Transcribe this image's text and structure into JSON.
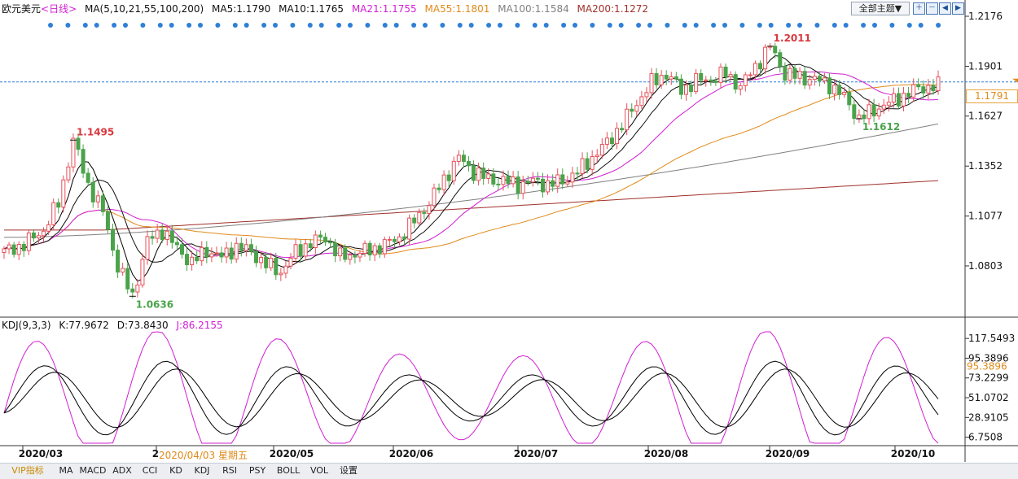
{
  "legend": {
    "symbol": "欧元美元",
    "period": "<日线>",
    "ma_params": "MA(5,10,21,55,100,200)",
    "ma5": "MA5:1.1790",
    "ma10": "MA10:1.1765",
    "ma21": "MA21:1.1755",
    "ma55": "MA55:1.1801",
    "ma100": "MA100:1.1584",
    "ma200": "MA200:1.1272"
  },
  "kdj_legend": {
    "params": "KDJ(9,3,3)",
    "k": "K:77.9672",
    "d": "D:73.8430",
    "j": "J:86.2155"
  },
  "toolbar": {
    "theme_label": "全部主题▼"
  },
  "tabs": [
    "VIP指标",
    "MA",
    "MACD",
    "ADX",
    "CCI",
    "KD",
    "KDJ",
    "RSI",
    "PSY",
    "BOLL",
    "VOL",
    "设置"
  ],
  "colors": {
    "up": "#e8505b",
    "down": "#4aa34a",
    "ma5": "#000000",
    "ma10": "#111111",
    "ma21": "#d21ed2",
    "ma55": "#e08a1a",
    "ma100": "#808080",
    "ma200": "#a0302a",
    "k": "#000000",
    "d": "#000000",
    "j": "#d21ed2"
  },
  "chart_data": [
    {
      "type": "candlestick",
      "title": "欧元美元 <日线>",
      "ylim": [
        1.053,
        1.2176
      ],
      "yticks": [
        1.2176,
        1.1901,
        1.1627,
        1.1352,
        1.1077,
        1.0803
      ],
      "ytick_labels": [
        "1.2176",
        "1.1901",
        "1.1627",
        "1.1352",
        "1.1077",
        "1.0803"
      ],
      "x_labels": [
        "2020/03",
        "2020/04",
        "2020/05",
        "2020/06",
        "2020/07",
        "2020/08",
        "2020/09",
        "2020/10"
      ],
      "current_price": 1.1791,
      "current_price_label": "1.1791",
      "annotations": [
        {
          "label": "1.1495",
          "value": 1.1495,
          "kind": "high"
        },
        {
          "label": "1.0636",
          "value": 1.0636,
          "kind": "low"
        },
        {
          "label": "1.2011",
          "value": 1.2011,
          "kind": "high"
        },
        {
          "label": "1.1612",
          "value": 1.1612,
          "kind": "low"
        }
      ],
      "close_path": [
        [
          0,
          1.088
        ],
        [
          4,
          1.092
        ],
        [
          8,
          1.1
        ],
        [
          11,
          1.115
        ],
        [
          14,
          1.1495
        ],
        [
          17,
          1.125
        ],
        [
          20,
          1.11
        ],
        [
          23,
          1.08
        ],
        [
          26,
          1.0636
        ],
        [
          29,
          1.094
        ],
        [
          32,
          1.1
        ],
        [
          35,
          1.09
        ],
        [
          38,
          1.082
        ],
        [
          41,
          1.089
        ],
        [
          44,
          1.085
        ],
        [
          47,
          1.091
        ],
        [
          50,
          1.088
        ],
        [
          53,
          1.081
        ],
        [
          56,
          1.077
        ],
        [
          59,
          1.088
        ],
        [
          62,
          1.093
        ],
        [
          65,
          1.096
        ],
        [
          68,
          1.085
        ],
        [
          71,
          1.087
        ],
        [
          74,
          1.089
        ],
        [
          77,
          1.092
        ],
        [
          80,
          1.096
        ],
        [
          83,
          1.105
        ],
        [
          86,
          1.115
        ],
        [
          89,
          1.128
        ],
        [
          92,
          1.14
        ],
        [
          95,
          1.132
        ],
        [
          98,
          1.128
        ],
        [
          101,
          1.127
        ],
        [
          104,
          1.125
        ],
        [
          107,
          1.127
        ],
        [
          110,
          1.125
        ],
        [
          113,
          1.127
        ],
        [
          116,
          1.132
        ],
        [
          119,
          1.14
        ],
        [
          122,
          1.148
        ],
        [
          125,
          1.158
        ],
        [
          128,
          1.17
        ],
        [
          131,
          1.181
        ],
        [
          134,
          1.186
        ],
        [
          137,
          1.177
        ],
        [
          140,
          1.182
        ],
        [
          143,
          1.183
        ],
        [
          146,
          1.186
        ],
        [
          149,
          1.179
        ],
        [
          152,
          1.19
        ],
        [
          155,
          1.2011
        ],
        [
          158,
          1.186
        ],
        [
          161,
          1.184
        ],
        [
          164,
          1.183
        ],
        [
          167,
          1.18
        ],
        [
          170,
          1.173
        ],
        [
          173,
          1.1612
        ],
        [
          176,
          1.166
        ],
        [
          179,
          1.17
        ],
        [
          182,
          1.174
        ],
        [
          185,
          1.178
        ],
        [
          188,
          1.1791
        ]
      ],
      "ma_series": [
        {
          "name": "MA5",
          "last": 1.179
        },
        {
          "name": "MA10",
          "last": 1.1765
        },
        {
          "name": "MA21",
          "last": 1.1755
        },
        {
          "name": "MA55",
          "last": 1.1801
        },
        {
          "name": "MA100",
          "last": 1.1584
        },
        {
          "name": "MA200",
          "last": 1.1272
        }
      ]
    },
    {
      "type": "line",
      "title": "KDJ(9,3,3)",
      "ylim": [
        0,
        125
      ],
      "yticks": [
        117.5493,
        95.3896,
        73.2299,
        51.0702,
        28.9105,
        6.7508
      ],
      "ytick_labels": [
        "117.5493",
        "95.3896",
        "73.2299",
        "51.0702",
        "28.9105",
        "6.7508"
      ],
      "current_value_label": "95.3896",
      "series": [
        {
          "name": "K",
          "last": 77.9672
        },
        {
          "name": "D",
          "last": 73.843
        },
        {
          "name": "J",
          "last": 86.2155
        }
      ]
    }
  ],
  "status": {
    "cursor_date": "2020/04/03 星期五"
  }
}
